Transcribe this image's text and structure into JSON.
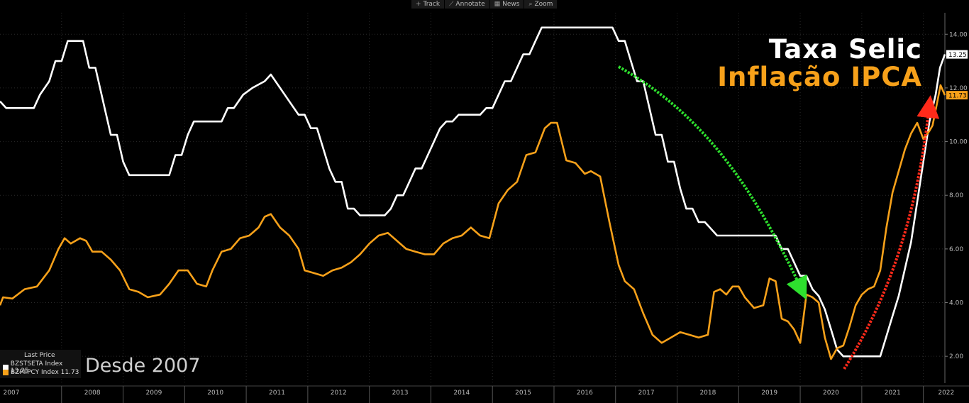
{
  "toolbar": {
    "items": [
      {
        "label": "Track",
        "icon": "track-icon"
      },
      {
        "label": "Annotate",
        "icon": "annotate-icon"
      },
      {
        "label": "News",
        "icon": "news-icon"
      },
      {
        "label": "Zoom",
        "icon": "zoom-icon"
      }
    ]
  },
  "legend": {
    "header": "Last Price",
    "rows": [
      {
        "label": "BZSTSETA Index  13.25",
        "color": "#ffffff"
      },
      {
        "label": "BZPIIPCY Index  11.73",
        "color": "#f7a11a"
      }
    ]
  },
  "annotations": {
    "selic": "Taxa Selic",
    "ipca": "Inflação IPCA",
    "since": "Desde 2007"
  },
  "chart_data": {
    "type": "line",
    "background": "#000000",
    "grid": true,
    "xlim": [
      2007.0,
      2022.35
    ],
    "ylim": [
      1.0,
      14.8
    ],
    "x_ticks": [
      "2007",
      "2008",
      "2009",
      "2010",
      "2011",
      "2012",
      "2013",
      "2014",
      "2015",
      "2016",
      "2017",
      "2018",
      "2019",
      "2020",
      "2021",
      "2022"
    ],
    "y_ticks": [
      "2.00",
      "4.00",
      "6.00",
      "8.00",
      "10.00",
      "12.00",
      "14.00"
    ],
    "last_values": {
      "BZSTSETA": "13.25",
      "BZPIIPCY": "11.73"
    },
    "series": [
      {
        "name": "BZSTSETA Index",
        "color": "#ffffff",
        "points": [
          [
            2007.0,
            11.5
          ],
          [
            2007.1,
            11.25
          ],
          [
            2007.55,
            11.25
          ],
          [
            2007.65,
            11.75
          ],
          [
            2007.8,
            12.25
          ],
          [
            2007.9,
            13.0
          ],
          [
            2008.0,
            13.0
          ],
          [
            2008.1,
            13.75
          ],
          [
            2008.35,
            13.75
          ],
          [
            2008.45,
            12.75
          ],
          [
            2008.55,
            12.75
          ],
          [
            2008.7,
            11.25
          ],
          [
            2008.8,
            10.25
          ],
          [
            2008.9,
            10.25
          ],
          [
            2009.0,
            9.25
          ],
          [
            2009.1,
            8.75
          ],
          [
            2009.75,
            8.75
          ],
          [
            2009.85,
            9.5
          ],
          [
            2009.95,
            9.5
          ],
          [
            2010.05,
            10.25
          ],
          [
            2010.15,
            10.75
          ],
          [
            2010.6,
            10.75
          ],
          [
            2010.7,
            11.25
          ],
          [
            2010.8,
            11.25
          ],
          [
            2010.95,
            11.75
          ],
          [
            2011.1,
            12.0
          ],
          [
            2011.3,
            12.25
          ],
          [
            2011.4,
            12.5
          ],
          [
            2011.55,
            12.0
          ],
          [
            2011.7,
            11.5
          ],
          [
            2011.85,
            11.0
          ],
          [
            2011.95,
            11.0
          ],
          [
            2012.05,
            10.5
          ],
          [
            2012.15,
            10.5
          ],
          [
            2012.25,
            9.75
          ],
          [
            2012.35,
            9.0
          ],
          [
            2012.45,
            8.5
          ],
          [
            2012.55,
            8.5
          ],
          [
            2012.65,
            7.5
          ],
          [
            2012.75,
            7.5
          ],
          [
            2012.85,
            7.25
          ],
          [
            2013.25,
            7.25
          ],
          [
            2013.35,
            7.5
          ],
          [
            2013.45,
            8.0
          ],
          [
            2013.55,
            8.0
          ],
          [
            2013.65,
            8.5
          ],
          [
            2013.75,
            9.0
          ],
          [
            2013.85,
            9.0
          ],
          [
            2013.95,
            9.5
          ],
          [
            2014.05,
            10.0
          ],
          [
            2014.15,
            10.5
          ],
          [
            2014.25,
            10.75
          ],
          [
            2014.35,
            10.75
          ],
          [
            2014.45,
            11.0
          ],
          [
            2014.8,
            11.0
          ],
          [
            2014.9,
            11.25
          ],
          [
            2015.0,
            11.25
          ],
          [
            2015.1,
            11.75
          ],
          [
            2015.2,
            12.25
          ],
          [
            2015.3,
            12.25
          ],
          [
            2015.4,
            12.75
          ],
          [
            2015.5,
            13.25
          ],
          [
            2015.6,
            13.25
          ],
          [
            2015.7,
            13.75
          ],
          [
            2015.8,
            14.25
          ],
          [
            2016.95,
            14.25
          ],
          [
            2017.05,
            13.75
          ],
          [
            2017.15,
            13.75
          ],
          [
            2017.25,
            13.0
          ],
          [
            2017.35,
            12.25
          ],
          [
            2017.45,
            12.25
          ],
          [
            2017.55,
            11.25
          ],
          [
            2017.65,
            10.25
          ],
          [
            2017.75,
            10.25
          ],
          [
            2017.85,
            9.25
          ],
          [
            2017.95,
            9.25
          ],
          [
            2018.05,
            8.25
          ],
          [
            2018.15,
            7.5
          ],
          [
            2018.25,
            7.5
          ],
          [
            2018.35,
            7.0
          ],
          [
            2018.45,
            7.0
          ],
          [
            2018.55,
            6.75
          ],
          [
            2018.65,
            6.5
          ],
          [
            2019.6,
            6.5
          ],
          [
            2019.7,
            6.0
          ],
          [
            2019.8,
            6.0
          ],
          [
            2019.9,
            5.5
          ],
          [
            2020.0,
            5.0
          ],
          [
            2020.1,
            5.0
          ],
          [
            2020.2,
            4.5
          ],
          [
            2020.3,
            4.25
          ],
          [
            2020.4,
            3.75
          ],
          [
            2020.5,
            3.0
          ],
          [
            2020.6,
            2.25
          ],
          [
            2020.7,
            2.0
          ],
          [
            2021.3,
            2.0
          ],
          [
            2021.4,
            2.75
          ],
          [
            2021.5,
            3.5
          ],
          [
            2021.6,
            4.25
          ],
          [
            2021.7,
            5.25
          ],
          [
            2021.8,
            6.25
          ],
          [
            2021.9,
            7.75
          ],
          [
            2022.0,
            9.25
          ],
          [
            2022.1,
            10.75
          ],
          [
            2022.2,
            11.75
          ],
          [
            2022.27,
            12.75
          ],
          [
            2022.35,
            13.25
          ]
        ]
      },
      {
        "name": "BZPIIPCY Index",
        "color": "#f7a11a",
        "points": [
          [
            2007.0,
            3.9
          ],
          [
            2007.05,
            4.2
          ],
          [
            2007.2,
            4.15
          ],
          [
            2007.4,
            4.5
          ],
          [
            2007.6,
            4.6
          ],
          [
            2007.8,
            5.2
          ],
          [
            2007.95,
            6.0
          ],
          [
            2008.05,
            6.4
          ],
          [
            2008.15,
            6.2
          ],
          [
            2008.3,
            6.4
          ],
          [
            2008.4,
            6.3
          ],
          [
            2008.5,
            5.9
          ],
          [
            2008.65,
            5.9
          ],
          [
            2008.8,
            5.6
          ],
          [
            2008.95,
            5.2
          ],
          [
            2009.1,
            4.5
          ],
          [
            2009.25,
            4.4
          ],
          [
            2009.4,
            4.2
          ],
          [
            2009.6,
            4.3
          ],
          [
            2009.75,
            4.7
          ],
          [
            2009.9,
            5.2
          ],
          [
            2010.05,
            5.2
          ],
          [
            2010.2,
            4.7
          ],
          [
            2010.35,
            4.6
          ],
          [
            2010.45,
            5.2
          ],
          [
            2010.6,
            5.9
          ],
          [
            2010.75,
            6.0
          ],
          [
            2010.9,
            6.4
          ],
          [
            2011.05,
            6.5
          ],
          [
            2011.2,
            6.8
          ],
          [
            2011.3,
            7.2
          ],
          [
            2011.4,
            7.3
          ],
          [
            2011.55,
            6.8
          ],
          [
            2011.7,
            6.5
          ],
          [
            2011.85,
            6.0
          ],
          [
            2011.95,
            5.2
          ],
          [
            2012.1,
            5.1
          ],
          [
            2012.25,
            5.0
          ],
          [
            2012.4,
            5.2
          ],
          [
            2012.55,
            5.3
          ],
          [
            2012.7,
            5.5
          ],
          [
            2012.85,
            5.8
          ],
          [
            2013.0,
            6.2
          ],
          [
            2013.15,
            6.5
          ],
          [
            2013.3,
            6.6
          ],
          [
            2013.45,
            6.3
          ],
          [
            2013.6,
            6.0
          ],
          [
            2013.75,
            5.9
          ],
          [
            2013.9,
            5.8
          ],
          [
            2014.05,
            5.8
          ],
          [
            2014.2,
            6.2
          ],
          [
            2014.35,
            6.4
          ],
          [
            2014.5,
            6.5
          ],
          [
            2014.65,
            6.8
          ],
          [
            2014.8,
            6.5
          ],
          [
            2014.95,
            6.4
          ],
          [
            2015.1,
            7.7
          ],
          [
            2015.25,
            8.2
          ],
          [
            2015.4,
            8.5
          ],
          [
            2015.55,
            9.5
          ],
          [
            2015.7,
            9.6
          ],
          [
            2015.85,
            10.5
          ],
          [
            2015.95,
            10.7
          ],
          [
            2016.05,
            10.7
          ],
          [
            2016.2,
            9.3
          ],
          [
            2016.35,
            9.2
          ],
          [
            2016.5,
            8.8
          ],
          [
            2016.6,
            8.9
          ],
          [
            2016.75,
            8.7
          ],
          [
            2016.9,
            7.0
          ],
          [
            2017.05,
            5.4
          ],
          [
            2017.15,
            4.8
          ],
          [
            2017.3,
            4.5
          ],
          [
            2017.45,
            3.6
          ],
          [
            2017.6,
            2.8
          ],
          [
            2017.75,
            2.5
          ],
          [
            2017.9,
            2.7
          ],
          [
            2018.05,
            2.9
          ],
          [
            2018.2,
            2.8
          ],
          [
            2018.35,
            2.7
          ],
          [
            2018.5,
            2.8
          ],
          [
            2018.6,
            4.4
          ],
          [
            2018.7,
            4.5
          ],
          [
            2018.8,
            4.3
          ],
          [
            2018.9,
            4.6
          ],
          [
            2019.0,
            4.6
          ],
          [
            2019.1,
            4.2
          ],
          [
            2019.25,
            3.8
          ],
          [
            2019.4,
            3.9
          ],
          [
            2019.5,
            4.9
          ],
          [
            2019.6,
            4.8
          ],
          [
            2019.7,
            3.4
          ],
          [
            2019.8,
            3.3
          ],
          [
            2019.9,
            3.0
          ],
          [
            2020.0,
            2.5
          ],
          [
            2020.1,
            4.3
          ],
          [
            2020.2,
            4.2
          ],
          [
            2020.3,
            4.0
          ],
          [
            2020.4,
            2.7
          ],
          [
            2020.5,
            1.9
          ],
          [
            2020.6,
            2.3
          ],
          [
            2020.7,
            2.4
          ],
          [
            2020.8,
            3.1
          ],
          [
            2020.9,
            3.9
          ],
          [
            2021.0,
            4.3
          ],
          [
            2021.1,
            4.5
          ],
          [
            2021.2,
            4.6
          ],
          [
            2021.3,
            5.2
          ],
          [
            2021.4,
            6.8
          ],
          [
            2021.5,
            8.1
          ],
          [
            2021.6,
            8.9
          ],
          [
            2021.7,
            9.7
          ],
          [
            2021.8,
            10.3
          ],
          [
            2021.9,
            10.7
          ],
          [
            2022.0,
            10.1
          ],
          [
            2022.1,
            10.4
          ],
          [
            2022.15,
            10.6
          ],
          [
            2022.22,
            11.4
          ],
          [
            2022.28,
            12.1
          ],
          [
            2022.35,
            11.73
          ]
        ]
      }
    ]
  }
}
